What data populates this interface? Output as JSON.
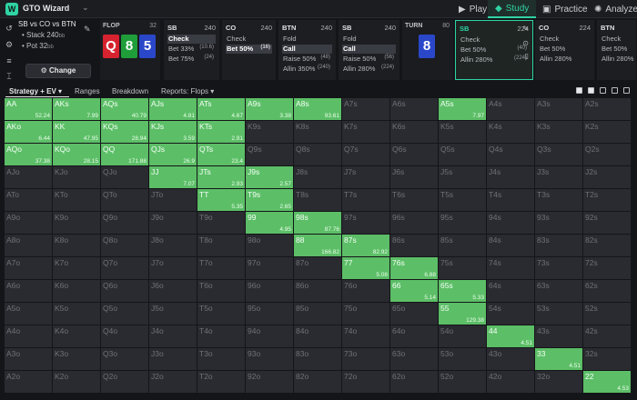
{
  "app": {
    "title": "GTO Wizard"
  },
  "nav": [
    {
      "label": "Play",
      "icon": "play-icon",
      "glyph": "▶"
    },
    {
      "label": "Study",
      "icon": "study-icon",
      "glyph": "◆"
    },
    {
      "label": "Practice",
      "icon": "practice-icon",
      "glyph": "▣"
    },
    {
      "label": "Analyze",
      "icon": "analyze-icon",
      "glyph": "✺"
    }
  ],
  "spot": {
    "title": "SB vs CO vs BTN",
    "stack": "Stack 240",
    "pot": "Pot 32",
    "unit": "bb",
    "change_label": "Change"
  },
  "flop": {
    "label": "FLOP",
    "count": "32",
    "cards": [
      {
        "rank": "Q",
        "color": "#d6232f"
      },
      {
        "rank": "8",
        "color": "#1f9e3a"
      },
      {
        "rank": "5",
        "color": "#2a47c9"
      }
    ]
  },
  "panels_left": [
    {
      "pos": "SB",
      "amount": "240",
      "actions": [
        {
          "label": "Check",
          "num": "",
          "selected": true
        },
        {
          "label": "Bet 33%",
          "num": "(10.6)",
          "selected": false
        },
        {
          "label": "Bet 75%",
          "num": "(24)",
          "selected": false
        }
      ]
    },
    {
      "pos": "CO",
      "amount": "240",
      "actions": [
        {
          "label": "Check",
          "num": "",
          "selected": false
        },
        {
          "label": "Bet 50%",
          "num": "(16)",
          "selected": true
        }
      ]
    },
    {
      "pos": "BTN",
      "amount": "240",
      "actions": [
        {
          "label": "Fold",
          "num": "",
          "selected": false
        },
        {
          "label": "Call",
          "num": "",
          "selected": true
        },
        {
          "label": "Raise 50%",
          "num": "(48)",
          "selected": false
        },
        {
          "label": "Allin 350%",
          "num": "(240)",
          "selected": false
        }
      ]
    },
    {
      "pos": "SB",
      "amount": "240",
      "actions": [
        {
          "label": "Fold",
          "num": "",
          "selected": false
        },
        {
          "label": "Call",
          "num": "",
          "selected": true
        },
        {
          "label": "Raise 50%",
          "num": "(56)",
          "selected": false
        },
        {
          "label": "Allin 280%",
          "num": "(224)",
          "selected": false
        }
      ]
    }
  ],
  "turn": {
    "label": "TURN",
    "count": "80",
    "card": {
      "rank": "8",
      "color": "#2a47c9"
    }
  },
  "panels_right": [
    {
      "pos": "SB",
      "amount": "224",
      "active": true,
      "actions": [
        {
          "label": "Check",
          "num": "",
          "selected": false
        },
        {
          "label": "Bet 50%",
          "num": "(40)",
          "selected": false
        },
        {
          "label": "Allin 280%",
          "num": "(224)",
          "selected": false
        }
      ]
    },
    {
      "pos": "CO",
      "amount": "224",
      "active": false,
      "actions": [
        {
          "label": "Check",
          "num": "",
          "selected": false
        },
        {
          "label": "Bet 50%",
          "num": "",
          "selected": false
        },
        {
          "label": "Allin 280%",
          "num": "",
          "selected": false
        }
      ]
    },
    {
      "pos": "BTN",
      "amount": "",
      "active": false,
      "actions": [
        {
          "label": "Check",
          "num": "",
          "selected": false
        },
        {
          "label": "Bet 50%",
          "num": "",
          "selected": false
        },
        {
          "label": "Allin 280%",
          "num": "",
          "selected": false
        }
      ]
    }
  ],
  "toolbar": {
    "strategy": "Strategy + EV",
    "ranges": "Ranges",
    "breakdown": "Breakdown",
    "reports": "Reports: Flops"
  },
  "grid": {
    "colors": {
      "played": "#5cbe67",
      "empty": "#2a2b30"
    },
    "rows": [
      [
        "AA",
        "AKs",
        "AQs",
        "AJs",
        "ATs",
        "A9s",
        "A8s",
        "A7s",
        "A6s",
        "A5s",
        "A4s",
        "A3s",
        "A2s"
      ],
      [
        "AKo",
        "KK",
        "KQs",
        "KJs",
        "KTs",
        "K9s",
        "K8s",
        "K7s",
        "K6s",
        "K5s",
        "K4s",
        "K3s",
        "K2s"
      ],
      [
        "AQo",
        "KQo",
        "QQ",
        "QJs",
        "QTs",
        "Q9s",
        "Q8s",
        "Q7s",
        "Q6s",
        "Q5s",
        "Q4s",
        "Q3s",
        "Q2s"
      ],
      [
        "AJo",
        "KJo",
        "QJo",
        "JJ",
        "JTs",
        "J9s",
        "J8s",
        "J7s",
        "J6s",
        "J5s",
        "J4s",
        "J3s",
        "J2s"
      ],
      [
        "ATo",
        "KTo",
        "QTo",
        "JTo",
        "TT",
        "T9s",
        "T8s",
        "T7s",
        "T6s",
        "T5s",
        "T4s",
        "T3s",
        "T2s"
      ],
      [
        "A9o",
        "K9o",
        "Q9o",
        "J9o",
        "T9o",
        "99",
        "98s",
        "97s",
        "96s",
        "95s",
        "94s",
        "93s",
        "92s"
      ],
      [
        "A8o",
        "K8o",
        "Q8o",
        "J8o",
        "T8o",
        "98o",
        "88",
        "87s",
        "86s",
        "85s",
        "84s",
        "83s",
        "82s"
      ],
      [
        "A7o",
        "K7o",
        "Q7o",
        "J7o",
        "T7o",
        "97o",
        "87o",
        "77",
        "76s",
        "75s",
        "74s",
        "73s",
        "72s"
      ],
      [
        "A6o",
        "K6o",
        "Q6o",
        "J6o",
        "T6o",
        "96o",
        "86o",
        "76o",
        "66",
        "65s",
        "64s",
        "63s",
        "62s"
      ],
      [
        "A5o",
        "K5o",
        "Q5o",
        "J5o",
        "T5o",
        "95o",
        "85o",
        "75o",
        "65o",
        "55",
        "54s",
        "53s",
        "52s"
      ],
      [
        "A4o",
        "K4o",
        "Q4o",
        "J4o",
        "T4o",
        "94o",
        "84o",
        "74o",
        "64o",
        "54o",
        "44",
        "43s",
        "42s"
      ],
      [
        "A3o",
        "K3o",
        "Q3o",
        "J3o",
        "T3o",
        "93o",
        "83o",
        "73o",
        "63o",
        "53o",
        "43o",
        "33",
        "32s"
      ],
      [
        "A2o",
        "K2o",
        "Q2o",
        "J2o",
        "T2o",
        "92o",
        "82o",
        "72o",
        "62o",
        "52o",
        "42o",
        "32o",
        "22"
      ]
    ],
    "played": {
      "AA": "52.24",
      "AKs": "7.99",
      "AQs": "40.79",
      "AJs": "4.81",
      "ATs": "4.67",
      "A9s": "3.38",
      "A8s": "93.61",
      "A5s": "7.97",
      "AKo": "6.44",
      "KK": "47.95",
      "KQs": "28.94",
      "KJs": "3.59",
      "KTs": "2.91",
      "AQo": "37.38",
      "KQo": "28.15",
      "QQ": "171.88",
      "QJs": "26.9",
      "QTs": "23.4",
      "JJ": "7.07",
      "JTs": "2.93",
      "J9s": "2.57",
      "TT": "5.35",
      "T9s": "2.65",
      "99": "4.95",
      "98s": "87.76",
      "88": "166.82",
      "87s": "82.92",
      "77": "5.08",
      "76s": "6.88",
      "66": "5.14",
      "65s": "5.33",
      "55": "129.38",
      "44": "4.51",
      "33": "4.51",
      "22": "4.53"
    }
  }
}
